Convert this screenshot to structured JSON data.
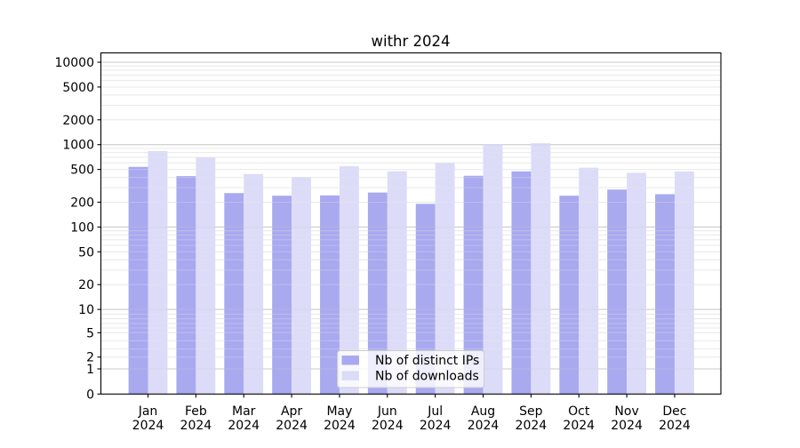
{
  "chart_data": {
    "type": "bar",
    "title": "withr 2024",
    "categories": [
      "Jan 2024",
      "Feb 2024",
      "Mar 2024",
      "Apr 2024",
      "May 2024",
      "Jun 2024",
      "Jul 2024",
      "Aug 2024",
      "Sep 2024",
      "Oct 2024",
      "Nov 2024",
      "Dec 2024"
    ],
    "series": [
      {
        "name": "Nb of distinct IPs",
        "color": "#a9a9f0",
        "values": [
          537,
          415,
          258,
          240,
          242,
          262,
          191,
          419,
          474,
          240,
          285,
          250
        ]
      },
      {
        "name": "Nb of downloads",
        "color": "#dcdcf8",
        "values": [
          835,
          705,
          440,
          405,
          547,
          474,
          600,
          1000,
          1040,
          525,
          455,
          473
        ]
      }
    ],
    "xlabel": "",
    "ylabel": "",
    "y_axis": {
      "scale": "symlog",
      "ticks": [
        10000,
        5000,
        2000,
        1000,
        500,
        200,
        100,
        50,
        20,
        10,
        5,
        2,
        1,
        0
      ],
      "ylim": [
        0,
        13000
      ]
    },
    "grid": {
      "horizontal": true,
      "major_color": "#c9c9c9",
      "minor_color": "#e9e9e9"
    },
    "legend": {
      "position": "bottom-center-inside",
      "border_color": "#cccccc",
      "background": "#ffffff"
    },
    "axis_color": "#000000",
    "background_color": "#ffffff"
  }
}
